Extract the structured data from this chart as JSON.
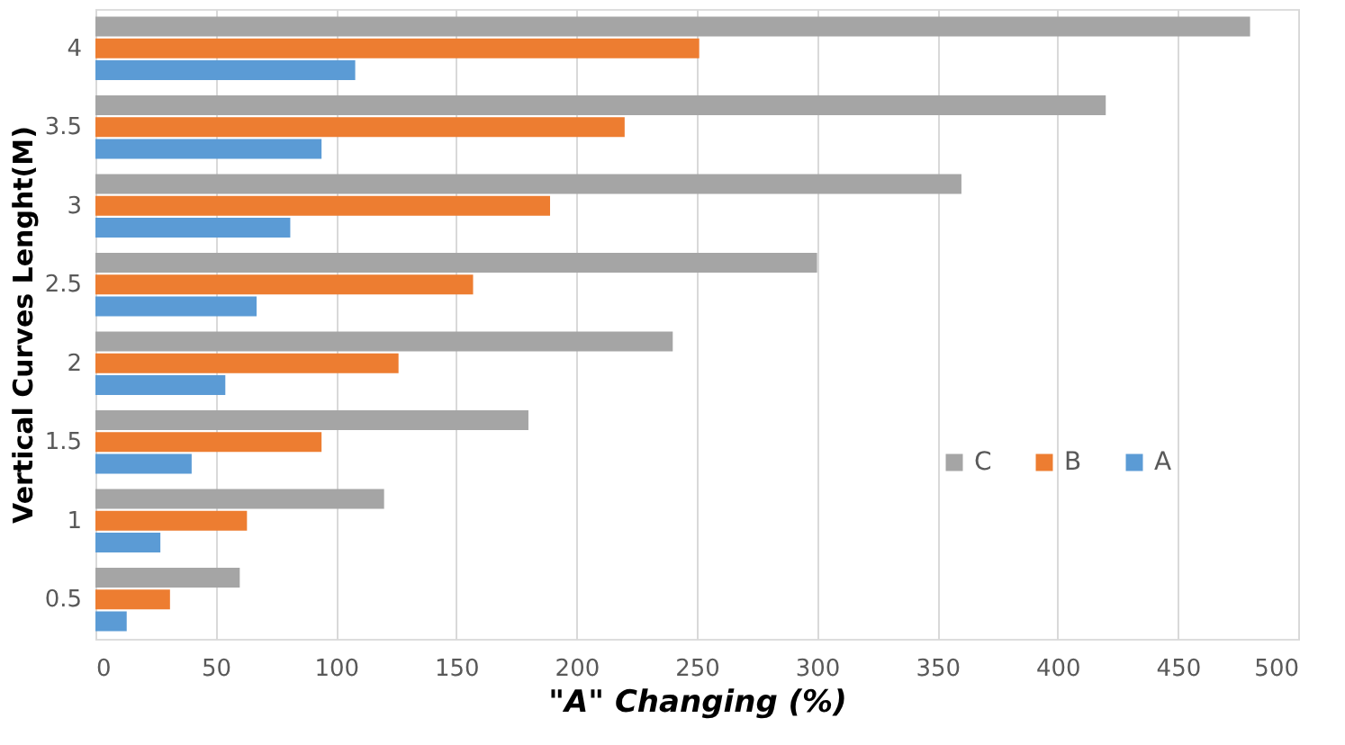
{
  "chart_data": {
    "type": "bar",
    "orientation": "horizontal",
    "xlabel": "\"A\" Changing (%)",
    "ylabel": "Vertical Curves Lenght(M)",
    "categories": [
      "4",
      "3.5",
      "3",
      "2.5",
      "2",
      "1.5",
      "1",
      "0.5"
    ],
    "series": [
      {
        "name": "C",
        "color": "#a5a5a5",
        "values": [
          480,
          420,
          360,
          300,
          240,
          180,
          120,
          60
        ]
      },
      {
        "name": "B",
        "color": "#ed7d31",
        "values": [
          251,
          220,
          189,
          157,
          126,
          94,
          63,
          31
        ]
      },
      {
        "name": "A",
        "color": "#5b9bd5",
        "values": [
          108,
          94,
          81,
          67,
          54,
          40,
          27,
          13
        ]
      }
    ],
    "xlim": [
      0,
      500
    ],
    "xticks": [
      0,
      50,
      100,
      150,
      200,
      250,
      300,
      350,
      400,
      450,
      500
    ],
    "grid": "x",
    "legend": "right"
  }
}
